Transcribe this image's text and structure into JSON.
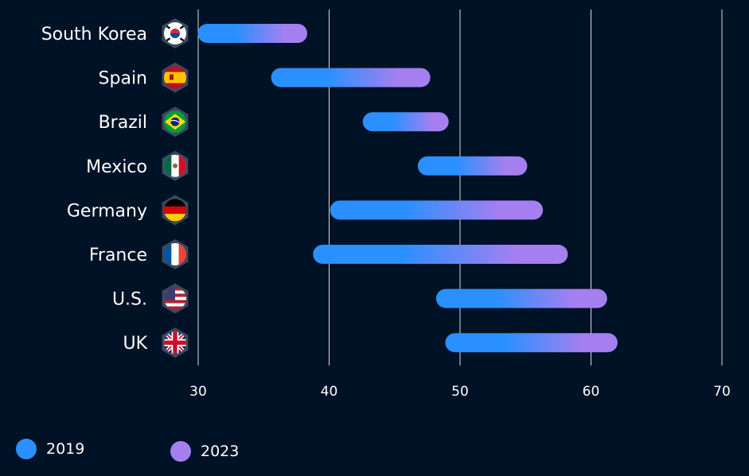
{
  "colors": {
    "background": "#001226",
    "start": "#2a90ff",
    "end": "#a57ff0",
    "grid": "#ffffff",
    "text": "#ffffff"
  },
  "legend": {
    "start_label": "2019",
    "end_label": "2023"
  },
  "chart_data": {
    "type": "bar",
    "subtype": "dumbbell-range",
    "categories": [
      "South Korea",
      "Spain",
      "Brazil",
      "Mexico",
      "Germany",
      "France",
      "U.S.",
      "UK"
    ],
    "flag_icons": [
      "south-korea-flag-icon",
      "spain-flag-icon",
      "brazil-flag-icon",
      "mexico-flag-icon",
      "germany-flag-icon",
      "france-flag-icon",
      "us-flag-icon",
      "uk-flag-icon"
    ],
    "series": [
      {
        "name": "2019",
        "values": [
          30.7,
          36.3,
          43.3,
          47.5,
          40.8,
          39.5,
          48.9,
          49.6
        ]
      },
      {
        "name": "2023",
        "values": [
          37.6,
          47.0,
          48.4,
          54.4,
          55.6,
          57.5,
          60.5,
          61.3
        ]
      }
    ],
    "xticks": [
      "30",
      "40",
      "50",
      "60",
      "70"
    ],
    "xlim": [
      30,
      70
    ],
    "grid": true,
    "legend_position": "bottom-left"
  }
}
